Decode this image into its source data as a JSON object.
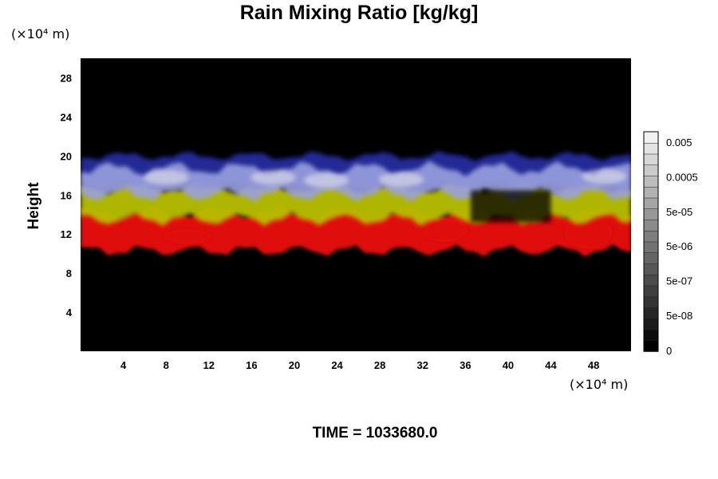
{
  "header": {
    "title": "Rain Mixing Ratio [kg/kg]",
    "y_unit": "(×10⁴ m)",
    "x_unit": "(×10⁴ m)",
    "y_label": "Height"
  },
  "footer": {
    "time_label": "TIME = 1033680.0"
  },
  "chart_data": {
    "type": "heatmap",
    "title": "Rain Mixing Ratio [kg/kg]",
    "ylabel": "Height",
    "xlabel": "",
    "xlim": [
      0,
      51.5
    ],
    "ylim": [
      0,
      30
    ],
    "x_ticks": [
      4,
      8,
      12,
      16,
      20,
      24,
      28,
      32,
      36,
      40,
      44,
      48
    ],
    "y_ticks": [
      4,
      8,
      12,
      16,
      20,
      24,
      28
    ],
    "x_tick_labels": [
      "4",
      "8",
      "12",
      "16",
      "20",
      "24",
      "28",
      "32",
      "36",
      "40",
      "44",
      "48"
    ],
    "y_tick_labels": [
      "4",
      "8",
      "12",
      "16",
      "20",
      "24",
      "28"
    ],
    "background": "#000000",
    "layers": [
      {
        "color": "#e01010",
        "y_range": [
          10.3,
          14.2
        ],
        "note": "red band"
      },
      {
        "color": "#b8c000",
        "y_range": [
          13.5,
          16.8
        ],
        "note": "yellow band"
      },
      {
        "color": "#9aa0e0",
        "y_range": [
          16.0,
          19.0
        ],
        "note": "blue/white band"
      },
      {
        "color": "#2a30b0",
        "y_range": [
          17.0,
          20.0
        ],
        "note": "dark blue top"
      }
    ],
    "colorbar": {
      "labels": [
        "0.005",
        "0.0005",
        "5e-05",
        "5e-06",
        "5e-07",
        "5e-08",
        "0"
      ],
      "colors_bottom_to_top": [
        "#000000",
        "#f0f0f0"
      ]
    },
    "grid": false
  }
}
